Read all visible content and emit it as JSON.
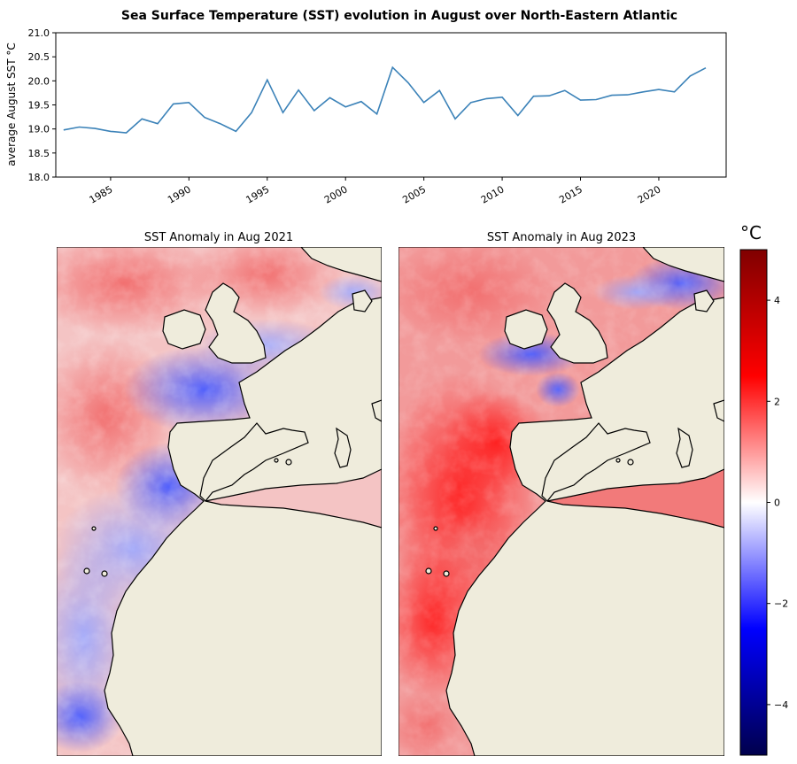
{
  "figure": {
    "suptitle": "Sea Surface Temperature (SST) evolution in August over North-Eastern Atlantic"
  },
  "chart_data": [
    {
      "type": "line",
      "title": "Sea Surface Temperature (SST) evolution in August over North-Eastern Atlantic",
      "xlabel": "",
      "ylabel": "average August SST °C",
      "ylim": [
        18.0,
        21.0
      ],
      "xlim": [
        1981.5,
        2024.3
      ],
      "yticks": [
        "18.0",
        "18.5",
        "19.0",
        "19.5",
        "20.0",
        "20.5",
        "21.0"
      ],
      "xticks": [
        "1985",
        "1990",
        "1995",
        "2000",
        "2005",
        "2010",
        "2015",
        "2020"
      ],
      "grid": false,
      "line_color": "#3b82b8",
      "series": [
        {
          "x": [
            1982,
            1983,
            1984,
            1985,
            1986,
            1987,
            1988,
            1989,
            1990,
            1991,
            1992,
            1993,
            1994,
            1995,
            1996,
            1997,
            1998,
            1999,
            2000,
            2001,
            2002,
            2003,
            2004,
            2005,
            2006,
            2007,
            2008,
            2009,
            2010,
            2011,
            2012,
            2013,
            2014,
            2015,
            2016,
            2017,
            2018,
            2019,
            2020,
            2021,
            2022,
            2023
          ],
          "values": [
            18.98,
            19.04,
            19.01,
            18.95,
            18.92,
            19.21,
            19.11,
            19.52,
            19.55,
            19.24,
            19.11,
            18.95,
            19.34,
            20.02,
            19.34,
            19.81,
            19.38,
            19.65,
            19.46,
            19.57,
            19.31,
            20.28,
            19.96,
            19.55,
            19.8,
            19.21,
            19.55,
            19.63,
            19.66,
            19.28,
            19.68,
            19.69,
            19.8,
            19.6,
            19.61,
            19.7,
            19.71,
            19.77,
            19.82,
            19.77,
            20.1,
            20.27
          ]
        }
      ]
    },
    {
      "type": "heatmap",
      "title": "SST Anomaly in Aug 2021",
      "region": "North-Eastern Atlantic",
      "colormap": "seismic",
      "land_color": "#efecdc",
      "clim": [
        -5,
        5
      ]
    },
    {
      "type": "heatmap",
      "title": "SST Anomaly in Aug 2023",
      "region": "North-Eastern Atlantic",
      "colormap": "seismic",
      "land_color": "#efecdc",
      "clim": [
        -5,
        5
      ]
    }
  ],
  "colorbar": {
    "label": "°C",
    "ticks": [
      "4",
      "2",
      "0",
      "−2",
      "−4"
    ],
    "tick_values": [
      4,
      2,
      0,
      -2,
      -4
    ],
    "range": [
      -5,
      5
    ],
    "colors": [
      "#00004c",
      "#0000ff",
      "#ffffff",
      "#ff0000",
      "#800000"
    ]
  }
}
